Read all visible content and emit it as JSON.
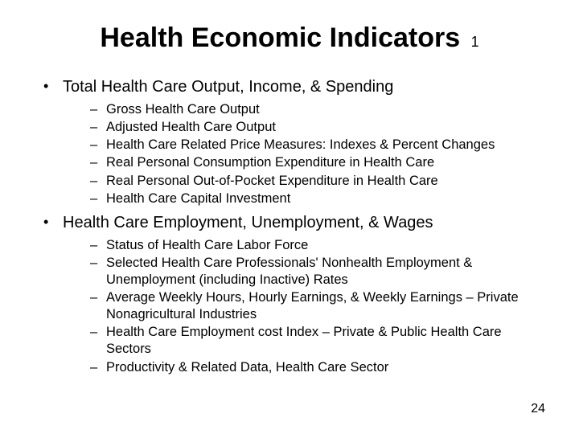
{
  "title": "Health Economic Indicators",
  "title_suffix": "1",
  "sections": [
    {
      "heading": "Total Health Care Output, Income, & Spending",
      "items": [
        "Gross Health Care Output",
        "Adjusted Health Care Output",
        "Health Care Related Price Measures: Indexes & Percent Changes",
        "Real Personal Consumption Expenditure in Health Care",
        "Real Personal Out-of-Pocket Expenditure in Health Care",
        "Health Care Capital Investment"
      ]
    },
    {
      "heading": "Health Care Employment, Unemployment, & Wages",
      "items": [
        "Status of Health Care Labor Force",
        "Selected Health Care Professionals' Nonhealth Employment & Unemployment (including Inactive) Rates",
        "Average Weekly Hours, Hourly Earnings, & Weekly Earnings – Private Nonagricultural Industries",
        "Health Care Employment cost Index – Private & Public Health Care Sectors",
        "Productivity & Related Data, Health Care Sector"
      ]
    }
  ],
  "page_number": "24",
  "style": {
    "background_color": "#ffffff",
    "text_color": "#000000",
    "title_fontsize": 34,
    "title_suffix_fontsize": 18,
    "level1_fontsize": 20,
    "level2_fontsize": 16.5,
    "pagenum_fontsize": 16,
    "font_family": "Arial"
  }
}
